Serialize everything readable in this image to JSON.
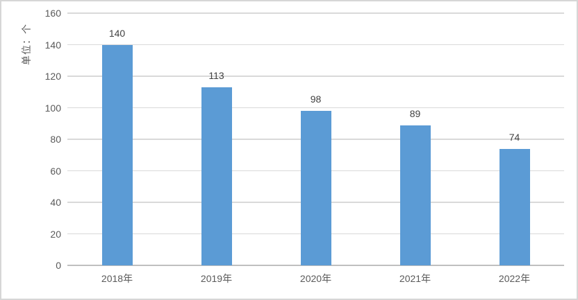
{
  "chart_data": {
    "type": "bar",
    "categories": [
      "2018年",
      "2019年",
      "2020年",
      "2021年",
      "2022年"
    ],
    "values": [
      140,
      113,
      98,
      89,
      74
    ],
    "data_labels": [
      "140",
      "113",
      "98",
      "89",
      "74"
    ],
    "title": "",
    "xlabel": "",
    "ylabel": "单位：个",
    "ylim": [
      0,
      160
    ],
    "yticks": [
      0,
      20,
      40,
      60,
      80,
      100,
      120,
      140,
      160
    ],
    "grid": "on",
    "legend": "none",
    "colors": {
      "bar": "#5b9bd5",
      "gridline": "#d9d9d9",
      "axis_line": "#bfbfbf",
      "tick_label": "#595959",
      "data_label": "#404040",
      "frame_border": "#d6d6d6",
      "background": "#ffffff"
    }
  }
}
